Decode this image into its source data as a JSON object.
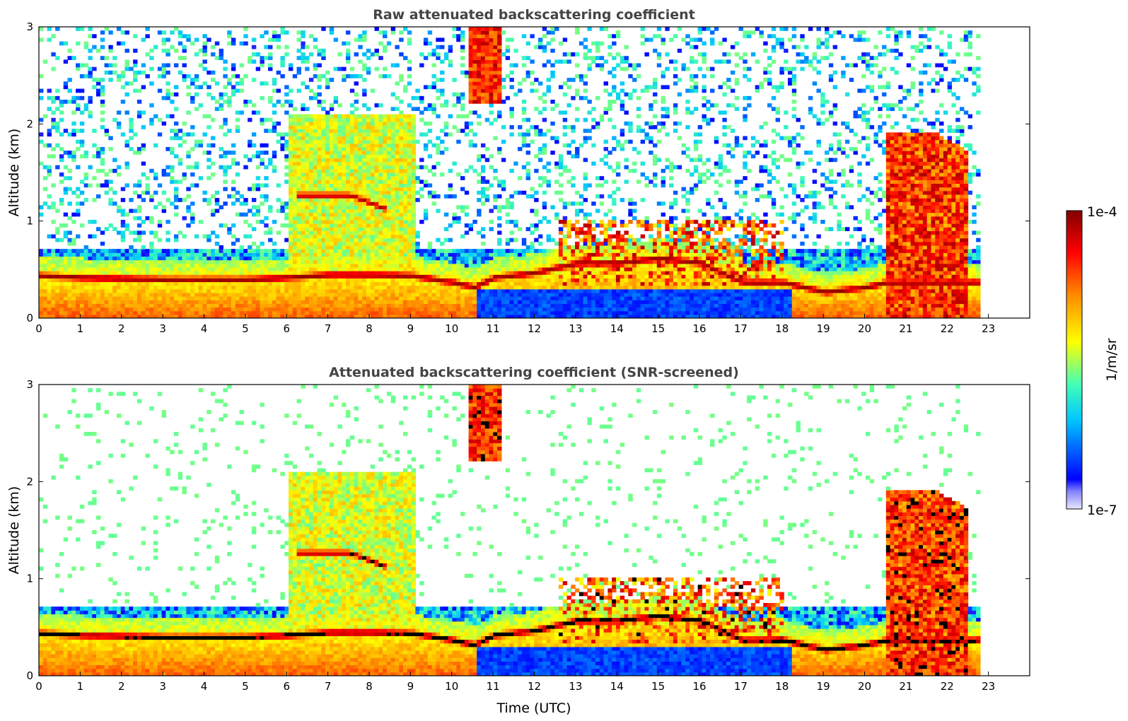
{
  "chart_data": [
    {
      "type": "heatmap",
      "title": "Raw attenuated backscattering coefficient",
      "xlabel": "",
      "ylabel": "Altitude (km)",
      "xlim": [
        0,
        24
      ],
      "ylim": [
        0,
        3
      ],
      "xticks": [
        "0",
        "1",
        "2",
        "3",
        "4",
        "5",
        "6",
        "7",
        "8",
        "9",
        "10",
        "11",
        "12",
        "13",
        "14",
        "15",
        "16",
        "17",
        "18",
        "19",
        "20",
        "21",
        "22",
        "23"
      ],
      "yticks": [
        "0",
        "1",
        "2",
        "3"
      ],
      "data_end_time": 22.8,
      "layers": [
        {
          "name": "boundary layer top",
          "t": [
            0,
            1,
            2,
            3,
            4,
            5,
            6,
            7,
            8,
            9,
            10,
            10.5,
            11,
            12,
            13,
            14,
            15,
            16,
            17,
            18,
            19,
            20,
            20.5
          ],
          "alt": [
            0.42,
            0.4,
            0.39,
            0.38,
            0.38,
            0.38,
            0.4,
            0.43,
            0.43,
            0.42,
            0.35,
            0.3,
            0.4,
            0.45,
            0.55,
            0.55,
            0.6,
            0.55,
            0.35,
            0.35,
            0.25,
            0.3,
            0.35
          ]
        },
        {
          "name": "elevated layer",
          "t": [
            6.2,
            7.5,
            8.4
          ],
          "alt": [
            1.25,
            1.25,
            1.1
          ]
        },
        {
          "name": "high cloud",
          "t": [
            10.4,
            11.2
          ],
          "alt": [
            2.7,
            2.8
          ]
        },
        {
          "name": "deep cloud",
          "t": [
            20.5,
            21.6,
            22.5
          ],
          "alt": [
            1.9,
            1.9,
            1.7
          ]
        }
      ]
    },
    {
      "type": "heatmap",
      "title": "Attenuated backscattering coefficient (SNR-screened)",
      "xlabel": "Time (UTC)",
      "ylabel": "Altitude (km)",
      "xlim": [
        0,
        24
      ],
      "ylim": [
        0,
        3
      ],
      "xticks": [
        "0",
        "1",
        "2",
        "3",
        "4",
        "5",
        "6",
        "7",
        "8",
        "9",
        "10",
        "11",
        "12",
        "13",
        "14",
        "15",
        "16",
        "17",
        "18",
        "19",
        "20",
        "21",
        "22",
        "23"
      ],
      "yticks": [
        "0",
        "1",
        "2",
        "3"
      ],
      "data_end_time": 22.8,
      "layers": [
        {
          "name": "boundary layer top",
          "t": [
            0,
            1,
            2,
            3,
            4,
            5,
            6,
            7,
            8,
            9,
            10,
            10.5,
            11,
            12,
            13,
            14,
            15,
            16,
            17,
            18,
            19,
            20,
            20.5
          ],
          "alt": [
            0.42,
            0.4,
            0.39,
            0.38,
            0.38,
            0.38,
            0.4,
            0.43,
            0.43,
            0.42,
            0.35,
            0.3,
            0.4,
            0.45,
            0.55,
            0.55,
            0.6,
            0.55,
            0.35,
            0.35,
            0.25,
            0.3,
            0.35
          ]
        },
        {
          "name": "elevated layer",
          "t": [
            6.2,
            7.5,
            8.4
          ],
          "alt": [
            1.25,
            1.25,
            1.1
          ]
        },
        {
          "name": "high cloud",
          "t": [
            10.4,
            11.2
          ],
          "alt": [
            2.7,
            2.8
          ]
        },
        {
          "name": "deep cloud",
          "t": [
            20.5,
            21.6,
            22.5
          ],
          "alt": [
            1.9,
            1.9,
            1.7
          ]
        }
      ]
    }
  ],
  "colorbar": {
    "label": "1/m/sr",
    "max_label": "1e-4",
    "min_label": "1e-7",
    "scale": "log",
    "colormap": "jet",
    "colors": [
      "#e8e8ff",
      "#0000ff",
      "#00c8ff",
      "#44ffb4",
      "#ffff00",
      "#ff8800",
      "#ff0000",
      "#800000"
    ]
  }
}
